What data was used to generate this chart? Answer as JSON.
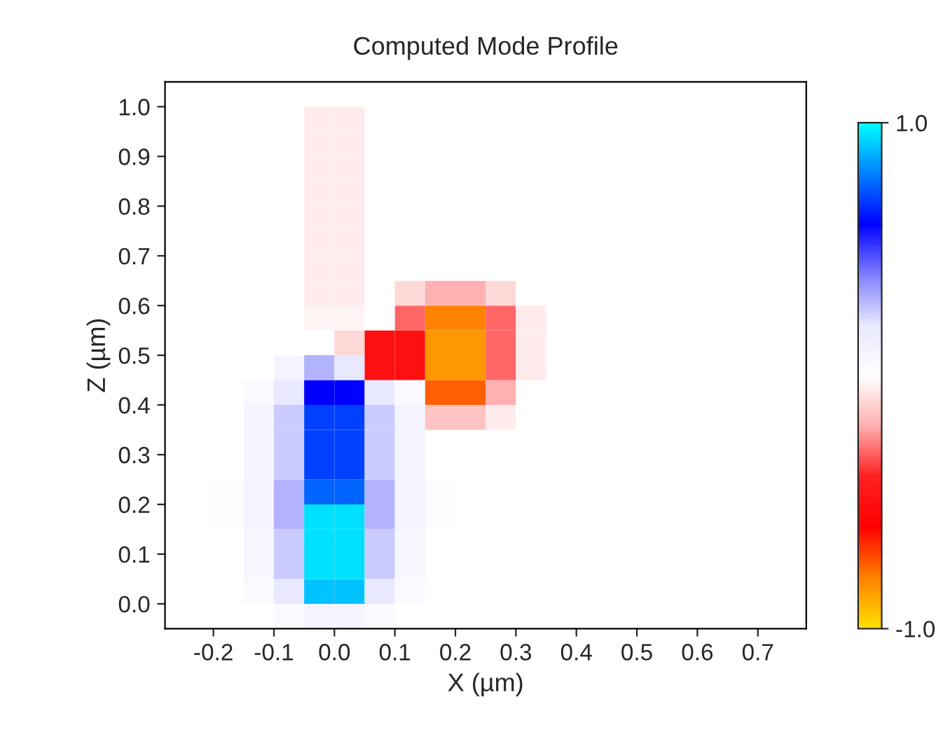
{
  "chart_data": {
    "type": "heatmap",
    "title": "Computed Mode Profile",
    "xlabel": "X (µm)",
    "ylabel": "Z (µm)",
    "x": [
      -0.275,
      -0.225,
      -0.175,
      -0.125,
      -0.075,
      -0.025,
      0.025,
      0.075,
      0.125,
      0.175,
      0.225,
      0.275,
      0.325,
      0.375,
      0.425,
      0.475,
      0.525,
      0.575,
      0.625,
      0.675,
      0.725,
      0.775
    ],
    "y": [
      1.025,
      0.975,
      0.925,
      0.875,
      0.825,
      0.775,
      0.725,
      0.675,
      0.625,
      0.575,
      0.525,
      0.475,
      0.425,
      0.375,
      0.325,
      0.275,
      0.225,
      0.175,
      0.125,
      0.075,
      0.025,
      -0.025
    ],
    "cells": [
      [
        0,
        0,
        0,
        0,
        0,
        0,
        0,
        0,
        0,
        0,
        0,
        0,
        0,
        0,
        0,
        0,
        0,
        0,
        0,
        0,
        0,
        0
      ],
      [
        0,
        0,
        0,
        0,
        0,
        -0.05,
        -0.05,
        0,
        0,
        0,
        0,
        0,
        0,
        0,
        0,
        0,
        0,
        0,
        0,
        0,
        0,
        0
      ],
      [
        0,
        0,
        0,
        0,
        0,
        -0.05,
        -0.05,
        0,
        0,
        0,
        0,
        0,
        0,
        0,
        0,
        0,
        0,
        0,
        0,
        0,
        0,
        0
      ],
      [
        0,
        0,
        0,
        0,
        0,
        -0.05,
        -0.05,
        0,
        0,
        0,
        0,
        0,
        0,
        0,
        0,
        0,
        0,
        0,
        0,
        0,
        0,
        0
      ],
      [
        0,
        0,
        0,
        0,
        0,
        -0.05,
        -0.05,
        0,
        0,
        0,
        0,
        0,
        0,
        0,
        0,
        0,
        0,
        0,
        0,
        0,
        0,
        0
      ],
      [
        0,
        0,
        0,
        0,
        0,
        -0.05,
        -0.05,
        0,
        0,
        0,
        0,
        0,
        0,
        0,
        0,
        0,
        0,
        0,
        0,
        0,
        0,
        0
      ],
      [
        0,
        0,
        0,
        0,
        0,
        -0.05,
        -0.05,
        0,
        0,
        0,
        0,
        0,
        0,
        0,
        0,
        0,
        0,
        0,
        0,
        0,
        0,
        0
      ],
      [
        0,
        0,
        0,
        0,
        0,
        -0.05,
        -0.05,
        0,
        0,
        0,
        0,
        0,
        0,
        0,
        0,
        0,
        0,
        0,
        0,
        0,
        0,
        0
      ],
      [
        0,
        0,
        0,
        0,
        0,
        -0.05,
        -0.05,
        0,
        -0.1,
        -0.2,
        -0.2,
        -0.1,
        0,
        0,
        0,
        0,
        0,
        0,
        0,
        0,
        0,
        0
      ],
      [
        0,
        0,
        0,
        0,
        0,
        -0.03,
        -0.03,
        0,
        -0.3,
        -0.8,
        -0.8,
        -0.3,
        -0.05,
        0,
        0,
        0,
        0,
        0,
        0,
        0,
        0,
        0
      ],
      [
        0,
        0,
        0,
        0,
        0,
        0,
        -0.1,
        -0.5,
        -0.5,
        -0.85,
        -0.85,
        -0.3,
        -0.05,
        0,
        0,
        0,
        0,
        0,
        0,
        0,
        0,
        0
      ],
      [
        0,
        0,
        0,
        0,
        0.1,
        0.3,
        0.2,
        -0.5,
        -0.5,
        -0.85,
        -0.85,
        -0.3,
        -0.05,
        0,
        0,
        0,
        0,
        0,
        0,
        0,
        0,
        0
      ],
      [
        0,
        0,
        0,
        0.05,
        0.2,
        0.6,
        0.6,
        0.2,
        0.05,
        -0.75,
        -0.75,
        -0.2,
        0,
        0,
        0,
        0,
        0,
        0,
        0,
        0,
        0,
        0
      ],
      [
        0,
        0,
        0,
        0.1,
        0.25,
        0.7,
        0.7,
        0.25,
        0.1,
        -0.15,
        -0.15,
        -0.05,
        0,
        0,
        0,
        0,
        0,
        0,
        0,
        0,
        0,
        0
      ],
      [
        0,
        0,
        0,
        0.1,
        0.25,
        0.7,
        0.7,
        0.25,
        0.1,
        0,
        0,
        0,
        0,
        0,
        0,
        0,
        0,
        0,
        0,
        0,
        0,
        0
      ],
      [
        0,
        0,
        0,
        0.1,
        0.25,
        0.7,
        0.7,
        0.25,
        0.1,
        0,
        0,
        0,
        0,
        0,
        0,
        0,
        0,
        0,
        0,
        0,
        0,
        0
      ],
      [
        0,
        0,
        0.02,
        0.1,
        0.3,
        0.75,
        0.75,
        0.3,
        0.1,
        0.02,
        0,
        0,
        0,
        0,
        0,
        0,
        0,
        0,
        0,
        0,
        0,
        0
      ],
      [
        0,
        0,
        0.02,
        0.1,
        0.3,
        0.95,
        0.95,
        0.3,
        0.1,
        0.02,
        0,
        0,
        0,
        0,
        0,
        0,
        0,
        0,
        0,
        0,
        0,
        0
      ],
      [
        0,
        0,
        0,
        0.08,
        0.25,
        0.95,
        0.95,
        0.25,
        0.08,
        0,
        0,
        0,
        0,
        0,
        0,
        0,
        0,
        0,
        0,
        0,
        0,
        0
      ],
      [
        0,
        0,
        0,
        0.08,
        0.25,
        0.95,
        0.95,
        0.25,
        0.08,
        0,
        0,
        0,
        0,
        0,
        0,
        0,
        0,
        0,
        0,
        0,
        0,
        0
      ],
      [
        0,
        0,
        0,
        0.05,
        0.2,
        0.9,
        0.9,
        0.2,
        0.05,
        0,
        0,
        0,
        0,
        0,
        0,
        0,
        0,
        0,
        0,
        0,
        0,
        0
      ],
      [
        0,
        0,
        0,
        0,
        0.05,
        0.1,
        0.1,
        0.05,
        0,
        0,
        0,
        0,
        0,
        0,
        0,
        0,
        0,
        0,
        0,
        0,
        0,
        0
      ]
    ],
    "colors": [
      "#ffe000",
      "#ff8000",
      "#ff0000",
      "#ff2020",
      "#ffb0b0",
      "#ffffff",
      "#e8e8ff",
      "#8080ff",
      "#0000ff",
      "#0080ff",
      "#00ffff"
    ],
    "clim": [
      -1,
      1
    ],
    "cticks": [
      {
        "value": -1,
        "label": "-1.0"
      },
      {
        "value": 1,
        "label": "1.0"
      }
    ],
    "xlim": [
      -0.28,
      0.78
    ],
    "ylim": [
      -0.05,
      1.05
    ],
    "xticks": [
      {
        "value": -0.2,
        "label": "-0.2"
      },
      {
        "value": -0.1,
        "label": "-0.1"
      },
      {
        "value": 0,
        "label": "0.0"
      },
      {
        "value": 0.1,
        "label": "0.1"
      },
      {
        "value": 0.2,
        "label": "0.2"
      },
      {
        "value": 0.3,
        "label": "0.3"
      },
      {
        "value": 0.4,
        "label": "0.4"
      },
      {
        "value": 0.5,
        "label": "0.5"
      },
      {
        "value": 0.6,
        "label": "0.6"
      },
      {
        "value": 0.7,
        "label": "0.7"
      }
    ],
    "yticks": [
      {
        "value": 0,
        "label": "0.0"
      },
      {
        "value": 0.1,
        "label": "0.1"
      },
      {
        "value": 0.2,
        "label": "0.2"
      },
      {
        "value": 0.3,
        "label": "0.3"
      },
      {
        "value": 0.4,
        "label": "0.4"
      },
      {
        "value": 0.5,
        "label": "0.5"
      },
      {
        "value": 0.6,
        "label": "0.6"
      },
      {
        "value": 0.7,
        "label": "0.7"
      },
      {
        "value": 0.8,
        "label": "0.8"
      },
      {
        "value": 0.9,
        "label": "0.9"
      },
      {
        "value": 1.0,
        "label": "1.0"
      }
    ],
    "grid": false
  }
}
